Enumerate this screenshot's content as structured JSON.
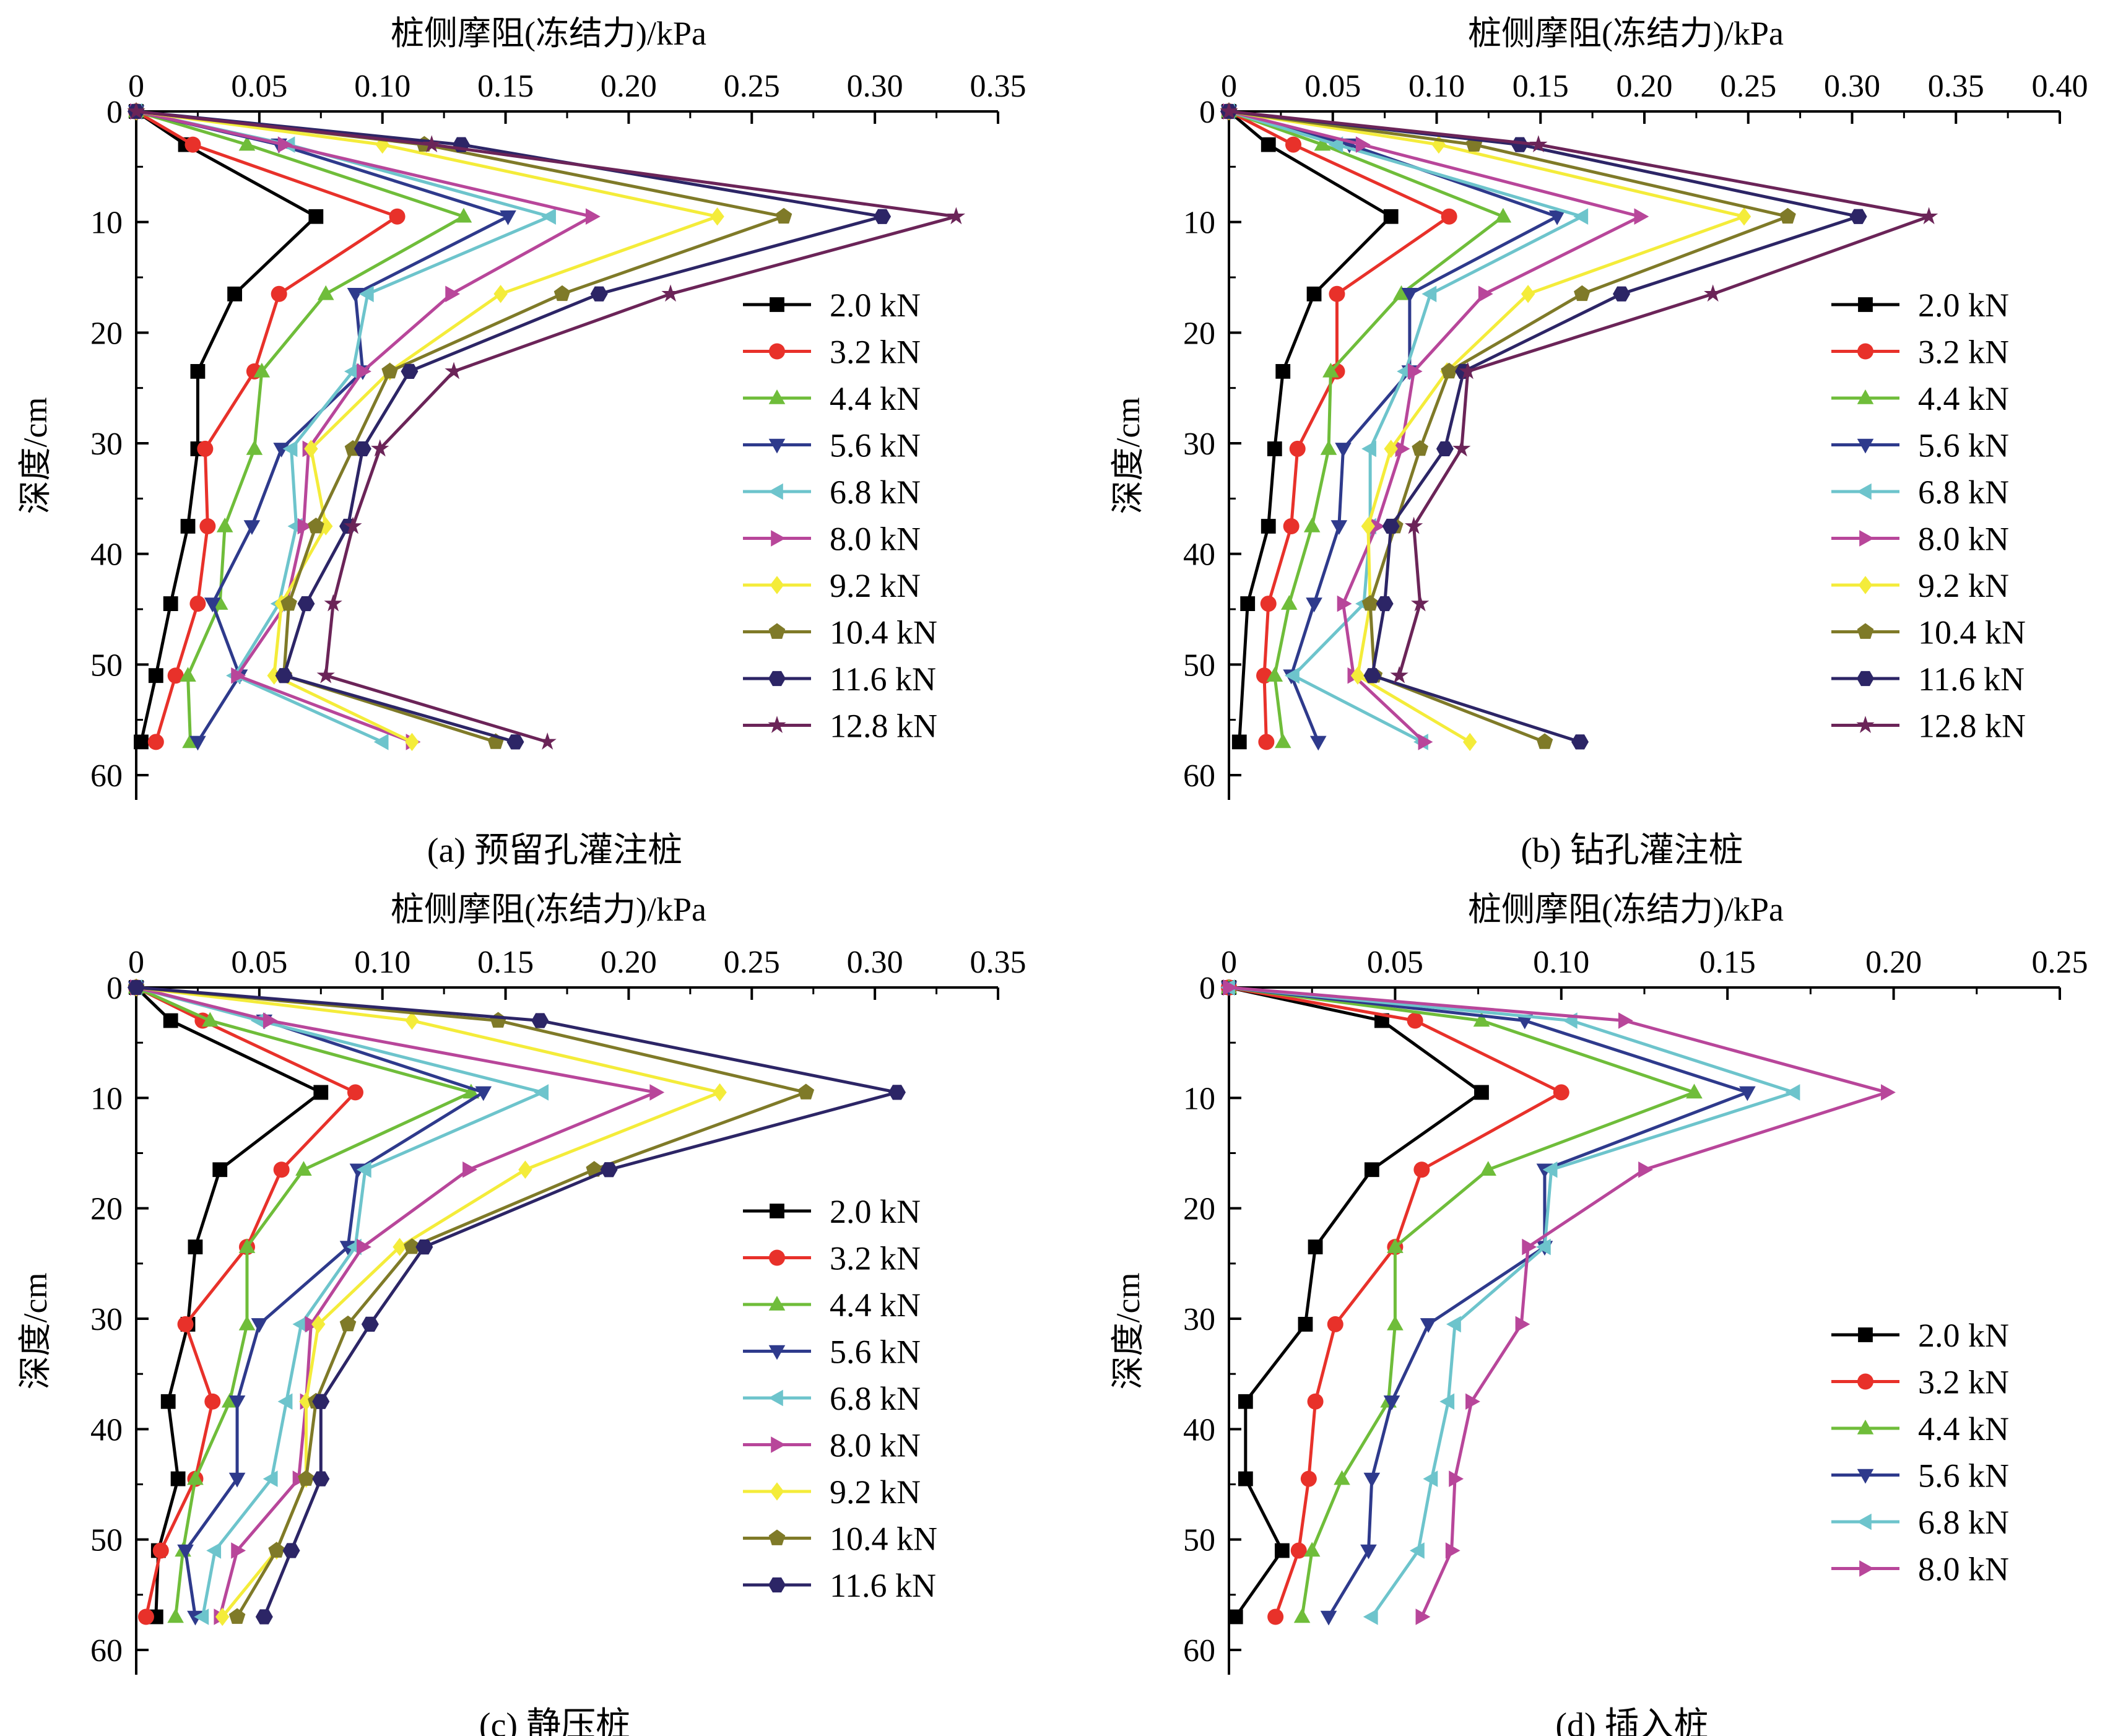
{
  "series_styles": [
    {
      "color": "#000000",
      "marker": "square"
    },
    {
      "color": "#e8312a",
      "marker": "circle"
    },
    {
      "color": "#6fbd3a",
      "marker": "triangle-up"
    },
    {
      "color": "#2e3a8c",
      "marker": "triangle-down"
    },
    {
      "color": "#6dc4cc",
      "marker": "triangle-left"
    },
    {
      "color": "#b8469a",
      "marker": "triangle-right"
    },
    {
      "color": "#f4ec3a",
      "marker": "diamond"
    },
    {
      "color": "#7f7a28",
      "marker": "pentagon"
    },
    {
      "color": "#2c2566",
      "marker": "hexagon"
    },
    {
      "color": "#6b2458",
      "marker": "star"
    }
  ],
  "chart_data": [
    {
      "type": "line",
      "caption": "(a) 预留孔灌注桩",
      "title": "",
      "xlabel": "桩侧摩阻(冻结力)/kPa",
      "ylabel": "深度/cm",
      "x_axis_position": "top",
      "y_inverted": true,
      "xlim": [
        0,
        0.35
      ],
      "xticks": [
        "0",
        "0.05",
        "0.10",
        "0.15",
        "0.20",
        "0.25",
        "0.30",
        "0.35"
      ],
      "ylim": [
        0,
        60
      ],
      "yticks": [
        "0",
        "10",
        "20",
        "30",
        "40",
        "50",
        "60"
      ],
      "legend_position": "right",
      "depth": [
        0,
        3,
        9.5,
        16.5,
        23.5,
        30.5,
        37.5,
        44.5,
        51,
        57
      ],
      "series": [
        {
          "name": "2.0 kN",
          "values": [
            0,
            0.02,
            0.073,
            0.04,
            0.025,
            0.025,
            0.021,
            0.014,
            0.008,
            0.002
          ]
        },
        {
          "name": "3.2 kN",
          "values": [
            0,
            0.023,
            0.106,
            0.058,
            0.048,
            0.028,
            0.029,
            0.025,
            0.016,
            0.008
          ]
        },
        {
          "name": "4.4 kN",
          "values": [
            0,
            0.045,
            0.133,
            0.077,
            0.051,
            0.048,
            0.036,
            0.034,
            0.021,
            0.022
          ]
        },
        {
          "name": "5.6 kN",
          "values": [
            0,
            0.058,
            0.151,
            0.089,
            0.092,
            0.059,
            0.047,
            0.031,
            0.042,
            0.025
          ]
        },
        {
          "name": "6.8 kN",
          "values": [
            0,
            0.062,
            0.168,
            0.094,
            0.088,
            0.063,
            0.065,
            0.058,
            0.04,
            0.1
          ]
        },
        {
          "name": "8.0 kN",
          "values": [
            0,
            0.06,
            0.185,
            0.128,
            0.092,
            0.07,
            0.068,
            0.061,
            0.041,
            0.112
          ]
        },
        {
          "name": "9.2 kN",
          "values": [
            0,
            0.1,
            0.236,
            0.148,
            0.103,
            0.071,
            0.077,
            0.059,
            0.056,
            0.112
          ]
        },
        {
          "name": "10.4 kN",
          "values": [
            0,
            0.117,
            0.263,
            0.173,
            0.103,
            0.088,
            0.073,
            0.062,
            0.06,
            0.146
          ]
        },
        {
          "name": "11.6 kN",
          "values": [
            0,
            0.132,
            0.303,
            0.188,
            0.111,
            0.092,
            0.086,
            0.069,
            0.06,
            0.154
          ]
        },
        {
          "name": "12.8 kN",
          "values": [
            0,
            0.12,
            0.333,
            0.217,
            0.129,
            0.099,
            0.088,
            0.08,
            0.077,
            0.167
          ]
        }
      ]
    },
    {
      "type": "line",
      "caption": "(b) 钻孔灌注桩",
      "title": "",
      "xlabel": "桩侧摩阻(冻结力)/kPa",
      "ylabel": "深度/cm",
      "x_axis_position": "top",
      "y_inverted": true,
      "xlim": [
        0,
        0.4
      ],
      "xticks": [
        "0",
        "0.05",
        "0.10",
        "0.15",
        "0.20",
        "0.25",
        "0.30",
        "0.35",
        "0.40"
      ],
      "ylim": [
        0,
        60
      ],
      "yticks": [
        "0",
        "10",
        "20",
        "30",
        "40",
        "50",
        "60"
      ],
      "legend_position": "right",
      "depth": [
        0,
        3,
        9.5,
        16.5,
        23.5,
        30.5,
        37.5,
        44.5,
        51,
        57
      ],
      "series": [
        {
          "name": "2.0 kN",
          "values": [
            0,
            0.019,
            0.078,
            0.041,
            0.026,
            0.022,
            0.019,
            0.009,
            null,
            0.005
          ]
        },
        {
          "name": "3.2 kN",
          "values": [
            0,
            0.031,
            0.106,
            0.052,
            0.052,
            0.033,
            0.03,
            0.019,
            0.017,
            0.018
          ]
        },
        {
          "name": "4.4 kN",
          "values": [
            0,
            0.045,
            0.132,
            0.083,
            0.049,
            0.048,
            0.04,
            0.029,
            0.022,
            0.026
          ]
        },
        {
          "name": "5.6 kN",
          "values": [
            0,
            0.058,
            0.158,
            0.087,
            0.087,
            0.055,
            0.053,
            0.041,
            0.03,
            0.043
          ]
        },
        {
          "name": "6.8 kN",
          "values": [
            0,
            0.052,
            0.17,
            0.097,
            0.085,
            0.068,
            0.068,
            0.065,
            0.031,
            0.093
          ]
        },
        {
          "name": "8.0 kN",
          "values": [
            0,
            0.064,
            0.198,
            0.123,
            0.089,
            0.083,
            0.071,
            0.055,
            0.06,
            0.094
          ]
        },
        {
          "name": "9.2 kN",
          "values": [
            0,
            0.101,
            0.248,
            0.144,
            0.105,
            0.078,
            0.067,
            0.068,
            0.062,
            0.116
          ]
        },
        {
          "name": "10.4 kN",
          "values": [
            0,
            0.118,
            0.269,
            0.17,
            0.106,
            0.092,
            0.08,
            0.068,
            0.07,
            0.152
          ]
        },
        {
          "name": "11.6 kN",
          "values": [
            0,
            0.14,
            0.303,
            0.189,
            0.113,
            0.104,
            0.078,
            0.075,
            0.069,
            0.169
          ]
        },
        {
          "name": "12.8 kN",
          "values": [
            0,
            0.149,
            0.337,
            0.233,
            0.115,
            0.112,
            0.089,
            0.092,
            0.082,
            null
          ]
        }
      ]
    },
    {
      "type": "line",
      "caption": "(c) 静压桩",
      "title": "",
      "xlabel": "桩侧摩阻(冻结力)/kPa",
      "ylabel": "深度/cm",
      "x_axis_position": "top",
      "y_inverted": true,
      "xlim": [
        0,
        0.35
      ],
      "xticks": [
        "0",
        "0.05",
        "0.10",
        "0.15",
        "0.20",
        "0.25",
        "0.30",
        "0.35"
      ],
      "ylim": [
        0,
        60
      ],
      "yticks": [
        "0",
        "10",
        "20",
        "30",
        "40",
        "50",
        "60"
      ],
      "legend_position": "right",
      "depth": [
        0,
        3,
        9.5,
        16.5,
        23.5,
        30.5,
        37.5,
        44.5,
        51,
        57
      ],
      "series": [
        {
          "name": "2.0 kN",
          "values": [
            0,
            0.014,
            0.075,
            0.034,
            0.024,
            0.021,
            0.013,
            0.017,
            0.009,
            0.008
          ]
        },
        {
          "name": "3.2 kN",
          "values": [
            0,
            0.027,
            0.089,
            0.059,
            0.045,
            0.02,
            0.031,
            0.024,
            0.01,
            0.004
          ]
        },
        {
          "name": "4.4 kN",
          "values": [
            0,
            0.03,
            0.136,
            0.068,
            0.045,
            0.045,
            0.038,
            0.024,
            0.019,
            0.016
          ]
        },
        {
          "name": "5.6 kN",
          "values": [
            0,
            0.052,
            0.141,
            0.09,
            0.086,
            0.05,
            0.041,
            0.041,
            0.02,
            0.024
          ]
        },
        {
          "name": "6.8 kN",
          "values": [
            0,
            0.05,
            0.165,
            0.093,
            0.089,
            0.067,
            0.061,
            0.055,
            0.032,
            0.027
          ]
        },
        {
          "name": "8.0 kN",
          "values": [
            0,
            0.054,
            0.211,
            0.135,
            0.092,
            0.071,
            0.069,
            0.066,
            0.041,
            0.034
          ]
        },
        {
          "name": "9.2 kN",
          "values": [
            0,
            0.112,
            0.237,
            0.158,
            0.107,
            0.074,
            0.069,
            0.069,
            0.057,
            0.035
          ]
        },
        {
          "name": "10.4 kN",
          "values": [
            0,
            0.147,
            0.272,
            0.186,
            0.112,
            0.086,
            0.073,
            0.069,
            0.057,
            0.041
          ]
        },
        {
          "name": "11.6 kN",
          "values": [
            0,
            0.164,
            0.309,
            0.192,
            0.117,
            0.095,
            0.075,
            0.075,
            0.063,
            0.052
          ]
        }
      ]
    },
    {
      "type": "line",
      "caption": "(d) 插入桩",
      "title": "",
      "xlabel": "桩侧摩阻(冻结力)/kPa",
      "ylabel": "深度/cm",
      "x_axis_position": "top",
      "y_inverted": true,
      "xlim": [
        0,
        0.25
      ],
      "xticks": [
        "0",
        "0.05",
        "0.10",
        "0.15",
        "0.20",
        "0.25"
      ],
      "ylim": [
        0,
        60
      ],
      "yticks": [
        "0",
        "10",
        "20",
        "30",
        "40",
        "50",
        "60"
      ],
      "legend_position": "right",
      "depth": [
        0,
        3,
        9.5,
        16.5,
        23.5,
        30.5,
        37.5,
        44.5,
        51,
        57
      ],
      "series": [
        {
          "name": "2.0 kN",
          "values": [
            0,
            0.046,
            0.076,
            0.043,
            0.026,
            0.023,
            0.005,
            0.005,
            0.016,
            0.002
          ]
        },
        {
          "name": "3.2 kN",
          "values": [
            0,
            0.056,
            0.1,
            0.058,
            0.05,
            0.032,
            0.026,
            0.024,
            0.021,
            0.014
          ]
        },
        {
          "name": "4.4 kN",
          "values": [
            0,
            0.076,
            0.14,
            0.078,
            0.05,
            0.05,
            0.048,
            0.034,
            0.025,
            0.022
          ]
        },
        {
          "name": "5.6 kN",
          "values": [
            0,
            0.089,
            0.156,
            0.095,
            0.095,
            0.06,
            0.049,
            0.043,
            0.042,
            0.03
          ]
        },
        {
          "name": "6.8 kN",
          "values": [
            0,
            0.103,
            0.17,
            0.097,
            0.095,
            0.068,
            0.066,
            0.061,
            0.057,
            0.043
          ]
        },
        {
          "name": "8.0 kN",
          "values": [
            0,
            0.119,
            0.198,
            0.125,
            0.09,
            0.088,
            0.073,
            0.068,
            0.067,
            0.058
          ]
        }
      ]
    }
  ]
}
